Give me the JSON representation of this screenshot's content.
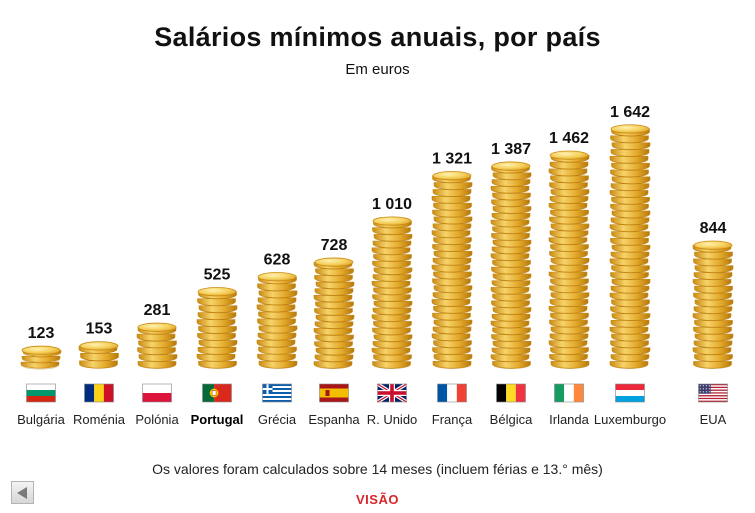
{
  "chart_data": {
    "type": "bar",
    "title": "Salários mínimos anuais, por país",
    "subtitle": "Em euros",
    "categories": [
      "Bulgária",
      "Roménia",
      "Polónia",
      "Portugal",
      "Grécia",
      "Espanha",
      "R. Unido",
      "França",
      "Bélgica",
      "Irlanda",
      "Luxemburgo",
      "EUA"
    ],
    "values": [
      123,
      153,
      281,
      525,
      628,
      728,
      1010,
      1321,
      1387,
      1462,
      1642,
      844
    ],
    "value_labels": [
      "123",
      "153",
      "281",
      "525",
      "628",
      "728",
      "1 010",
      "1 321",
      "1 387",
      "1 462",
      "1 642",
      "844"
    ],
    "highlighted_category": "Portugal",
    "bar_style": "stacked gold coins",
    "ylim": [
      0,
      1700
    ],
    "grid": false,
    "flags": [
      "bulgaria-flag",
      "romania-flag",
      "poland-flag",
      "portugal-flag",
      "greece-flag",
      "spain-flag",
      "uk-flag",
      "france-flag",
      "belgium-flag",
      "ireland-flag",
      "luxembourg-flag",
      "usa-flag"
    ]
  },
  "footnote": "Os valores foram calculados sobre 14 meses (incluem férias e 13.° mês)",
  "brand": "VISÃO",
  "colors": {
    "coin_face": "#f2c84b",
    "coin_edge": "#c98a12",
    "brand": "#d8262b"
  }
}
